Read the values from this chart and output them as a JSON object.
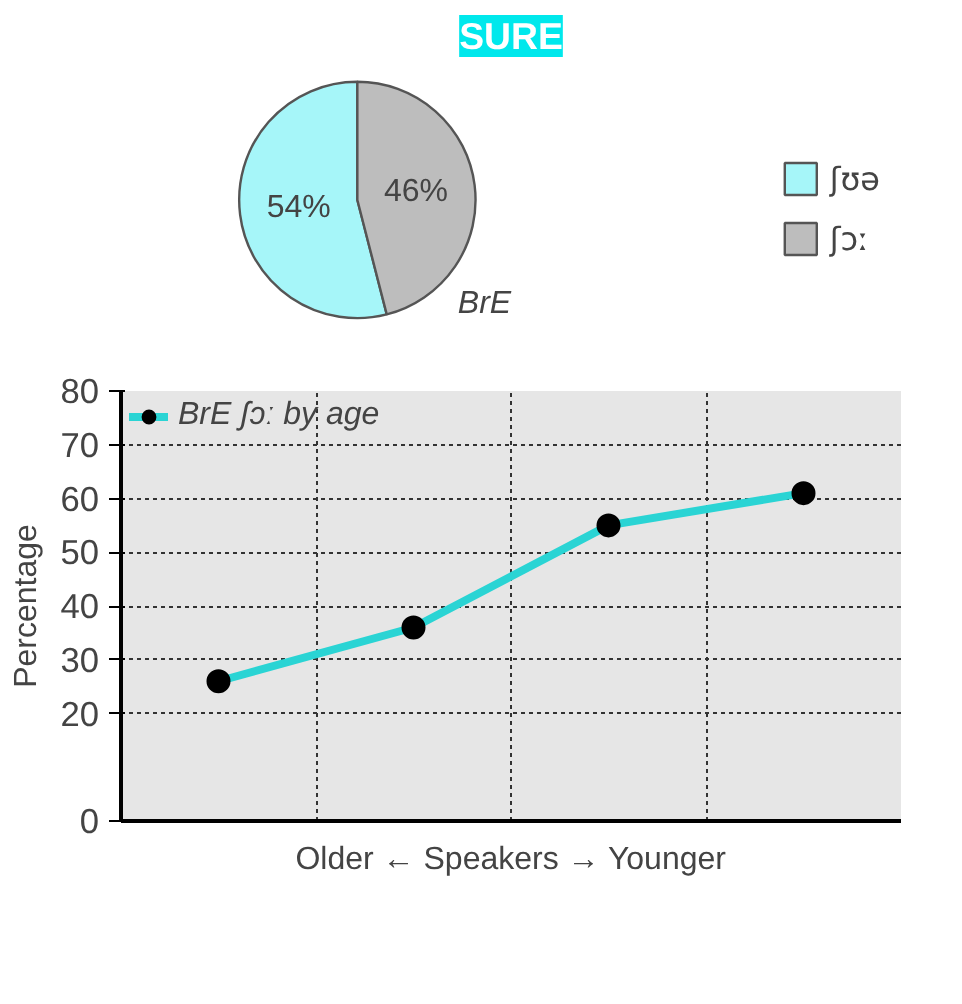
{
  "chart_data": [
    {
      "type": "pie",
      "title": "SURE",
      "categories": [
        "ʃʊə",
        "ʃɔː"
      ],
      "values": [
        54,
        46
      ],
      "value_labels": [
        "54%",
        "46%"
      ],
      "colors": [
        "#a6f6f9",
        "#bdbdbd"
      ],
      "legend": "right",
      "annotations": [
        "BrE"
      ]
    },
    {
      "type": "line",
      "categories": [
        null,
        null,
        null,
        null
      ],
      "xlabel": "Older ← Speakers → Younger",
      "ylabel": "Percentage",
      "series": [
        {
          "name": "BrE ʃɔː by age",
          "color": "#2ad4d4",
          "values": [
            26,
            36,
            55,
            61
          ]
        }
      ],
      "ylim": [
        0,
        80
      ],
      "yticks": [
        0,
        20,
        30,
        40,
        50,
        60,
        70,
        80
      ],
      "grid": true,
      "legend": "top left",
      "marker": "circle",
      "line_style": "solid"
    }
  ]
}
